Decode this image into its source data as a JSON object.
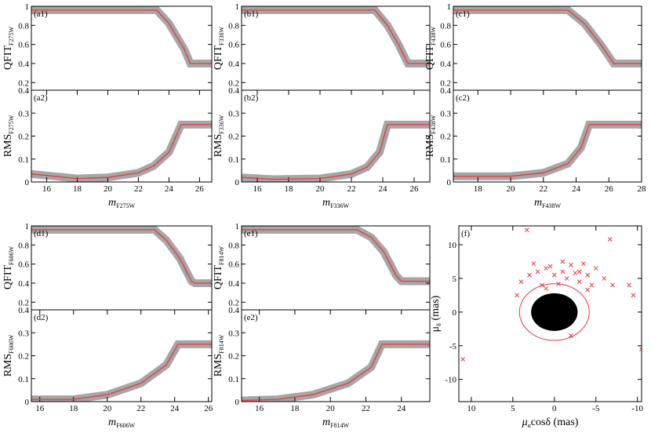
{
  "chart_data": [
    {
      "type": "line",
      "panel": "(a1)",
      "ylabel": "QFIT",
      "ylabel_sub": "F275W",
      "xlim": [
        15,
        26.8
      ],
      "ylim": [
        0.12,
        1.0
      ],
      "yticks": [
        0.2,
        0.4,
        0.6,
        0.8,
        1
      ],
      "series": [
        {
          "color": "#e8383d",
          "x": [
            15,
            23.2,
            24,
            25,
            25.4,
            26.8
          ],
          "values": [
            0.96,
            0.96,
            0.82,
            0.55,
            0.4,
            0.4
          ]
        }
      ]
    },
    {
      "type": "line",
      "panel": "(a2)",
      "ylabel": "RMS",
      "ylabel_sub": "F275W",
      "xlabel": "m",
      "xlabel_sub": "F275W",
      "xlim": [
        15,
        26.8
      ],
      "ylim": [
        0,
        0.4
      ],
      "yticks": [
        0,
        0.1,
        0.2,
        0.3,
        0.4
      ],
      "xticks": [
        16,
        18,
        20,
        22,
        24,
        26
      ],
      "series": [
        {
          "color": "#e8383d",
          "x": [
            15,
            18,
            20,
            22,
            23,
            24,
            24.8,
            26.8
          ],
          "values": [
            0.035,
            0.015,
            0.02,
            0.04,
            0.07,
            0.13,
            0.25,
            0.25
          ]
        }
      ]
    },
    {
      "type": "line",
      "panel": "(b1)",
      "ylabel": "QFIT",
      "ylabel_sub": "F336W",
      "xlim": [
        15,
        27
      ],
      "ylim": [
        0.12,
        1.0
      ],
      "yticks": [
        0.2,
        0.4,
        0.6,
        0.8,
        1
      ],
      "series": [
        {
          "color": "#e8383d",
          "x": [
            15,
            23.5,
            24.3,
            25,
            25.6,
            27
          ],
          "values": [
            0.96,
            0.96,
            0.8,
            0.6,
            0.4,
            0.4
          ]
        }
      ]
    },
    {
      "type": "line",
      "panel": "(b2)",
      "ylabel": "RMS",
      "ylabel_sub": "F336W",
      "xlabel": "m",
      "xlabel_sub": "F336W",
      "xlim": [
        15,
        27
      ],
      "ylim": [
        0,
        0.4
      ],
      "yticks": [
        0,
        0.1,
        0.2,
        0.3,
        0.4
      ],
      "xticks": [
        16,
        18,
        20,
        22,
        24,
        26
      ],
      "series": [
        {
          "color": "#e8383d",
          "x": [
            15,
            17,
            20,
            22,
            23,
            23.8,
            24.3,
            27
          ],
          "values": [
            0.02,
            0.012,
            0.015,
            0.035,
            0.065,
            0.13,
            0.25,
            0.25
          ]
        }
      ]
    },
    {
      "type": "line",
      "panel": "(c1)",
      "ylabel": "QFIT",
      "ylabel_sub": "F438W",
      "xlim": [
        16.5,
        28
      ],
      "ylim": [
        0.12,
        1.0
      ],
      "yticks": [
        0.2,
        0.4,
        0.6,
        0.8,
        1
      ],
      "series": [
        {
          "color": "#e8383d",
          "x": [
            16.5,
            23.5,
            24.5,
            25.5,
            26.3,
            28
          ],
          "values": [
            0.96,
            0.96,
            0.82,
            0.6,
            0.4,
            0.4
          ]
        }
      ]
    },
    {
      "type": "line",
      "panel": "(c2)",
      "ylabel": "RMS",
      "ylabel_sub": "F438W",
      "xlabel": "m",
      "xlabel_sub": "F438W",
      "xlim": [
        16.5,
        28
      ],
      "ylim": [
        0,
        0.4
      ],
      "yticks": [
        0,
        0.1,
        0.2,
        0.3,
        0.4
      ],
      "xticks": [
        18,
        20,
        22,
        24,
        26,
        28
      ],
      "series": [
        {
          "color": "#e8383d",
          "x": [
            16.5,
            20,
            22,
            23.5,
            24.3,
            24.8,
            28
          ],
          "values": [
            0.025,
            0.025,
            0.04,
            0.08,
            0.15,
            0.25,
            0.25
          ]
        }
      ]
    },
    {
      "type": "line",
      "panel": "(d1)",
      "ylabel": "QFIT",
      "ylabel_sub": "F606W",
      "xlim": [
        15.5,
        26.2
      ],
      "ylim": [
        0.12,
        1.0
      ],
      "yticks": [
        0.2,
        0.4,
        0.6,
        0.8,
        1
      ],
      "series": [
        {
          "color": "#e8383d",
          "x": [
            15.5,
            22.8,
            23.5,
            24.3,
            25,
            25.2,
            26.2
          ],
          "values": [
            0.96,
            0.96,
            0.85,
            0.66,
            0.42,
            0.4,
            0.4
          ]
        }
      ]
    },
    {
      "type": "line",
      "panel": "(d2)",
      "ylabel": "RMS",
      "ylabel_sub": "F606W",
      "xlabel": "m",
      "xlabel_sub": "F606W",
      "xlim": [
        15.5,
        26.2
      ],
      "ylim": [
        0,
        0.4
      ],
      "yticks": [
        0,
        0.1,
        0.2,
        0.3,
        0.4
      ],
      "xticks": [
        16,
        18,
        20,
        22,
        24,
        26
      ],
      "series": [
        {
          "color": "#e8383d",
          "x": [
            15.5,
            18,
            20,
            22,
            23.5,
            24.2,
            26.2
          ],
          "values": [
            0.01,
            0.01,
            0.03,
            0.08,
            0.16,
            0.25,
            0.25
          ]
        }
      ]
    },
    {
      "type": "line",
      "panel": "(e1)",
      "ylabel": "QFIT",
      "ylabel_sub": "F814W",
      "xlim": [
        15,
        25.6
      ],
      "ylim": [
        0.12,
        1.0
      ],
      "yticks": [
        0.2,
        0.4,
        0.6,
        0.8,
        1
      ],
      "series": [
        {
          "color": "#e8383d",
          "x": [
            15,
            21.5,
            22.3,
            23,
            23.7,
            24,
            25.6
          ],
          "values": [
            0.96,
            0.96,
            0.88,
            0.73,
            0.48,
            0.42,
            0.42
          ]
        }
      ]
    },
    {
      "type": "line",
      "panel": "(e2)",
      "ylabel": "RMS",
      "ylabel_sub": "F814W",
      "xlabel": "m",
      "xlabel_sub": "F814W",
      "xlim": [
        15,
        25.6
      ],
      "ylim": [
        0,
        0.4
      ],
      "yticks": [
        0,
        0.1,
        0.2,
        0.3,
        0.4
      ],
      "xticks": [
        16,
        18,
        20,
        22,
        24
      ],
      "series": [
        {
          "color": "#e8383d",
          "x": [
            15,
            17,
            19,
            21,
            22.3,
            22.9,
            25.6
          ],
          "values": [
            0.005,
            0.01,
            0.03,
            0.08,
            0.15,
            0.25,
            0.25
          ]
        }
      ]
    },
    {
      "type": "scatter",
      "panel": "(f)",
      "ylabel": "μ",
      "ylabel_sub": "δ",
      "ylabel_rest": " (mas)",
      "xlabel": "μ",
      "xlabel_sub": "α",
      "xlabel_rest": "cosδ (mas)",
      "xlim": [
        11.5,
        -10.5
      ],
      "ylim": [
        -13.3,
        12.8
      ],
      "xticks": [
        10,
        5,
        0,
        -5,
        -10
      ],
      "yticks": [
        -10,
        -5,
        0,
        5,
        10
      ],
      "cluster": {
        "r": 2.8,
        "color": "#000000"
      },
      "circle": {
        "r": 4.2,
        "color": "#e8383d"
      },
      "series": [
        {
          "color": "#e8383d",
          "x": [
            11,
            3.3,
            -6.7,
            -10.5,
            4,
            3,
            2,
            1,
            0,
            -1,
            -2,
            -3,
            -4,
            -5,
            -6,
            -7,
            -9,
            -9.5,
            1.5,
            -0.5,
            -1.5,
            -2.5,
            -3.5,
            0.5,
            2.5,
            -1,
            -3,
            -4.5,
            4.5,
            -2,
            -4,
            1
          ],
          "values": [
            -7,
            12.2,
            10.8,
            -5.5,
            4.5,
            5.5,
            6,
            6.5,
            5.5,
            6,
            7,
            6,
            5.5,
            6.5,
            5,
            4,
            4,
            2.5,
            4,
            4.2,
            5,
            5.8,
            7.2,
            6.8,
            7.2,
            7.5,
            4.5,
            4,
            2.5,
            -3.5,
            3.3,
            3.5
          ]
        }
      ]
    }
  ]
}
